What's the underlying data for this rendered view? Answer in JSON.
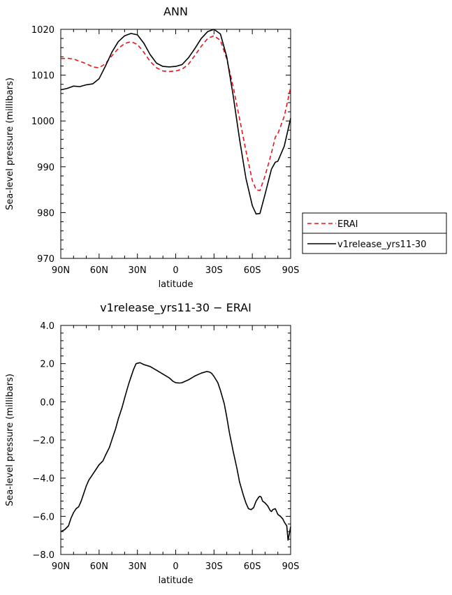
{
  "chart_data": [
    {
      "type": "line",
      "title": "ANN",
      "xlabel": "latitude",
      "ylabel": "Sea-level pressure (millibars)",
      "xlim": [
        90,
        -90
      ],
      "ylim": [
        970,
        1020
      ],
      "xticks": [
        90,
        60,
        30,
        0,
        -30,
        -60,
        -90
      ],
      "xtick_labels": [
        "90N",
        "60N",
        "30N",
        "0",
        "30S",
        "60S",
        "90S"
      ],
      "yticks": [
        970,
        980,
        990,
        1000,
        1010,
        1020
      ],
      "ytick_labels": [
        "970",
        "980",
        "990",
        "1000",
        "1010",
        "1020"
      ],
      "legend_position": "right",
      "series": [
        {
          "name": "ERAI",
          "color": "#e8141c",
          "dash": "dashed",
          "x": [
            90,
            85,
            80,
            75,
            70,
            65,
            60,
            55,
            50,
            45,
            40,
            35,
            30,
            25,
            20,
            15,
            10,
            5,
            0,
            -5,
            -10,
            -15,
            -20,
            -25,
            -30,
            -35,
            -40,
            -45,
            -50,
            -55,
            -60,
            -63,
            -66,
            -70,
            -75,
            -78,
            -80,
            -85,
            -90
          ],
          "y": [
            1013.6,
            1013.7,
            1013.5,
            1013.0,
            1012.5,
            1011.8,
            1011.6,
            1012.5,
            1014.2,
            1015.8,
            1016.9,
            1017.3,
            1016.7,
            1015.0,
            1013.0,
            1011.6,
            1010.9,
            1010.8,
            1010.9,
            1011.3,
            1012.4,
            1014.3,
            1016.3,
            1018.0,
            1018.6,
            1017.6,
            1013.5,
            1007.5,
            1000.5,
            993.5,
            987.0,
            985.0,
            984.8,
            988.0,
            993.0,
            996.5,
            997.2,
            1001.0,
            1007.3
          ]
        },
        {
          "name": "v1release_yrs11-30",
          "color": "#000000",
          "dash": "solid",
          "x": [
            90,
            85,
            80,
            75,
            70,
            65,
            60,
            55,
            50,
            45,
            40,
            35,
            30,
            25,
            20,
            15,
            10,
            5,
            0,
            -5,
            -10,
            -15,
            -20,
            -25,
            -30,
            -35,
            -40,
            -45,
            -50,
            -55,
            -60,
            -63,
            -66,
            -70,
            -75,
            -78,
            -80,
            -85,
            -90
          ],
          "y": [
            1006.8,
            1007.1,
            1007.6,
            1007.5,
            1007.9,
            1008.1,
            1009.2,
            1012.0,
            1015.0,
            1017.3,
            1018.6,
            1019.1,
            1018.8,
            1017.0,
            1014.5,
            1012.6,
            1011.9,
            1011.8,
            1011.9,
            1012.3,
            1013.8,
            1015.8,
            1018.0,
            1019.5,
            1020.0,
            1019.0,
            1014.0,
            1005.5,
            996.0,
            987.5,
            981.5,
            979.7,
            979.8,
            984.0,
            989.5,
            991.0,
            991.2,
            994.5,
            1000.6
          ]
        }
      ]
    },
    {
      "type": "line",
      "title": "v1release_yrs11-30 − ERAI",
      "xlabel": "latitude",
      "ylabel": "Sea-level pressure (millibars)",
      "xlim": [
        90,
        -90
      ],
      "ylim": [
        -8.0,
        4.0
      ],
      "xticks": [
        90,
        60,
        30,
        0,
        -30,
        -60,
        -90
      ],
      "xtick_labels": [
        "90N",
        "60N",
        "30N",
        "0",
        "30S",
        "60S",
        "90S"
      ],
      "yticks": [
        -8,
        -6,
        -4,
        -2,
        0,
        2,
        4
      ],
      "ytick_labels": [
        "−8.0",
        "−6.0",
        "−4.0",
        "−2.0",
        "0.0",
        "2.0",
        "4.0"
      ],
      "series": [
        {
          "name": "v1release_yrs11-30 - ERAI",
          "color": "#000000",
          "dash": "solid",
          "x": [
            90,
            87,
            84,
            82,
            80,
            78,
            76,
            74,
            72,
            70,
            68,
            66,
            64,
            62,
            60,
            57,
            55,
            52,
            50,
            47,
            45,
            42,
            40,
            37,
            35,
            33,
            31,
            28,
            25,
            20,
            15,
            10,
            5,
            2,
            0,
            -3,
            -5,
            -10,
            -15,
            -20,
            -24,
            -26,
            -28,
            -30,
            -33,
            -35,
            -38,
            -40,
            -42,
            -45,
            -48,
            -50,
            -53,
            -55,
            -57,
            -59,
            -61,
            -63,
            -65,
            -66,
            -67,
            -68,
            -70,
            -72,
            -74,
            -75,
            -76,
            -78,
            -80,
            -82,
            -84,
            -85,
            -86,
            -87,
            -88,
            -89,
            -90
          ],
          "y": [
            -6.8,
            -6.7,
            -6.5,
            -6.1,
            -5.8,
            -5.6,
            -5.5,
            -5.2,
            -4.8,
            -4.4,
            -4.1,
            -3.9,
            -3.7,
            -3.5,
            -3.3,
            -3.1,
            -2.8,
            -2.4,
            -2.0,
            -1.4,
            -0.9,
            -0.3,
            0.2,
            0.9,
            1.3,
            1.7,
            2.0,
            2.05,
            1.95,
            1.85,
            1.65,
            1.45,
            1.25,
            1.07,
            1.0,
            0.98,
            1.0,
            1.15,
            1.35,
            1.5,
            1.58,
            1.57,
            1.5,
            1.33,
            1.0,
            0.6,
            -0.1,
            -0.8,
            -1.6,
            -2.6,
            -3.5,
            -4.2,
            -4.9,
            -5.3,
            -5.6,
            -5.65,
            -5.55,
            -5.2,
            -5.0,
            -4.95,
            -5.0,
            -5.2,
            -5.3,
            -5.45,
            -5.7,
            -5.75,
            -5.65,
            -5.6,
            -5.9,
            -6.0,
            -6.15,
            -6.3,
            -6.4,
            -6.5,
            -7.25,
            -6.9,
            -6.55
          ]
        }
      ]
    }
  ]
}
